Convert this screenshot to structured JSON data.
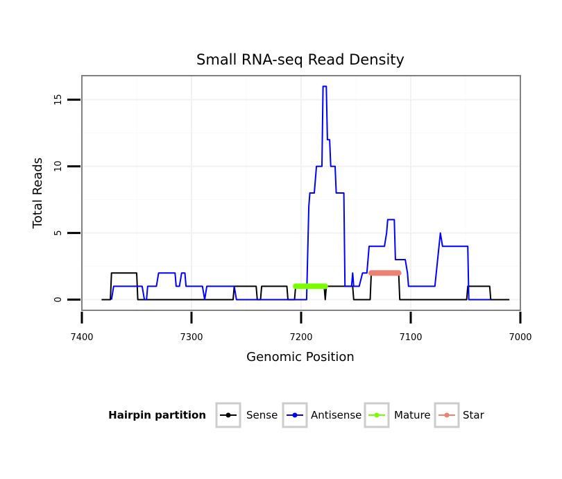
{
  "chart_data": {
    "type": "line",
    "title": "Small RNA-seq Read Density",
    "xlabel": "Genomic Position",
    "ylabel": "Total Reads",
    "xlim": [
      7400,
      7000
    ],
    "x_reversed": true,
    "ylim": [
      -0.8,
      16.8
    ],
    "x_ticks": [
      7400,
      7300,
      7200,
      7100,
      7000
    ],
    "y_ticks": [
      0,
      5,
      10,
      15
    ],
    "grid": true,
    "legend": {
      "title": "Hairpin partition",
      "placement": "bottom",
      "entries": [
        "Sense",
        "Antisense",
        "Mature",
        "Star"
      ]
    },
    "series": [
      {
        "name": "Sense",
        "color": "#000000",
        "points": [
          [
            7382,
            0
          ],
          [
            7374,
            0
          ],
          [
            7373,
            2
          ],
          [
            7350,
            2
          ],
          [
            7349,
            0
          ],
          [
            7262,
            0
          ],
          [
            7261,
            1
          ],
          [
            7241,
            1
          ],
          [
            7240,
            0
          ],
          [
            7237,
            0
          ],
          [
            7236,
            1
          ],
          [
            7213,
            1
          ],
          [
            7212,
            0
          ],
          [
            7206,
            0
          ],
          [
            7205,
            1
          ],
          [
            7179,
            1
          ],
          [
            7178,
            0
          ],
          [
            7177,
            1
          ],
          [
            7153,
            1
          ],
          [
            7152,
            0
          ],
          [
            7137,
            0
          ],
          [
            7136,
            2
          ],
          [
            7111,
            2
          ],
          [
            7110,
            0
          ],
          [
            7049,
            0
          ],
          [
            7048,
            1
          ],
          [
            7028,
            1
          ],
          [
            7027,
            0
          ],
          [
            7010,
            0
          ]
        ]
      },
      {
        "name": "Antisense",
        "color": "#0000ff",
        "points": [
          [
            7373,
            0
          ],
          [
            7371,
            1
          ],
          [
            7345,
            1
          ],
          [
            7343,
            0
          ],
          [
            7341,
            0
          ],
          [
            7340,
            1
          ],
          [
            7332,
            1
          ],
          [
            7330,
            2
          ],
          [
            7315,
            2
          ],
          [
            7314,
            1
          ],
          [
            7311,
            1
          ],
          [
            7309,
            2
          ],
          [
            7306,
            2
          ],
          [
            7305,
            1
          ],
          [
            7290,
            1
          ],
          [
            7288,
            0
          ],
          [
            7286,
            1
          ],
          [
            7261,
            1
          ],
          [
            7259,
            0
          ],
          [
            7195,
            0
          ],
          [
            7193,
            7
          ],
          [
            7192,
            8
          ],
          [
            7188,
            8
          ],
          [
            7186,
            10
          ],
          [
            7181,
            10
          ],
          [
            7180,
            16
          ],
          [
            7177,
            16
          ],
          [
            7176,
            12
          ],
          [
            7174,
            12
          ],
          [
            7173,
            10
          ],
          [
            7169,
            10
          ],
          [
            7168,
            8
          ],
          [
            7161,
            8
          ],
          [
            7160,
            1
          ],
          [
            7154,
            1
          ],
          [
            7153,
            2
          ],
          [
            7152,
            1
          ],
          [
            7147,
            1
          ],
          [
            7144,
            2
          ],
          [
            7140,
            2
          ],
          [
            7138,
            4
          ],
          [
            7124,
            4
          ],
          [
            7122,
            5
          ],
          [
            7121,
            6
          ],
          [
            7115,
            6
          ],
          [
            7114,
            3
          ],
          [
            7105,
            3
          ],
          [
            7103,
            2
          ],
          [
            7102,
            1
          ],
          [
            7078,
            1
          ],
          [
            7073,
            5
          ],
          [
            7071,
            4
          ],
          [
            7048,
            4
          ],
          [
            7047,
            0
          ],
          [
            7027,
            0
          ]
        ]
      },
      {
        "name": "Mature",
        "color": "#7cfc00",
        "points": [
          [
            7205,
            1
          ],
          [
            7178,
            1
          ]
        ]
      },
      {
        "name": "Star",
        "color": "#f08070",
        "points": [
          [
            7136,
            2
          ],
          [
            7111,
            2
          ]
        ]
      }
    ]
  }
}
